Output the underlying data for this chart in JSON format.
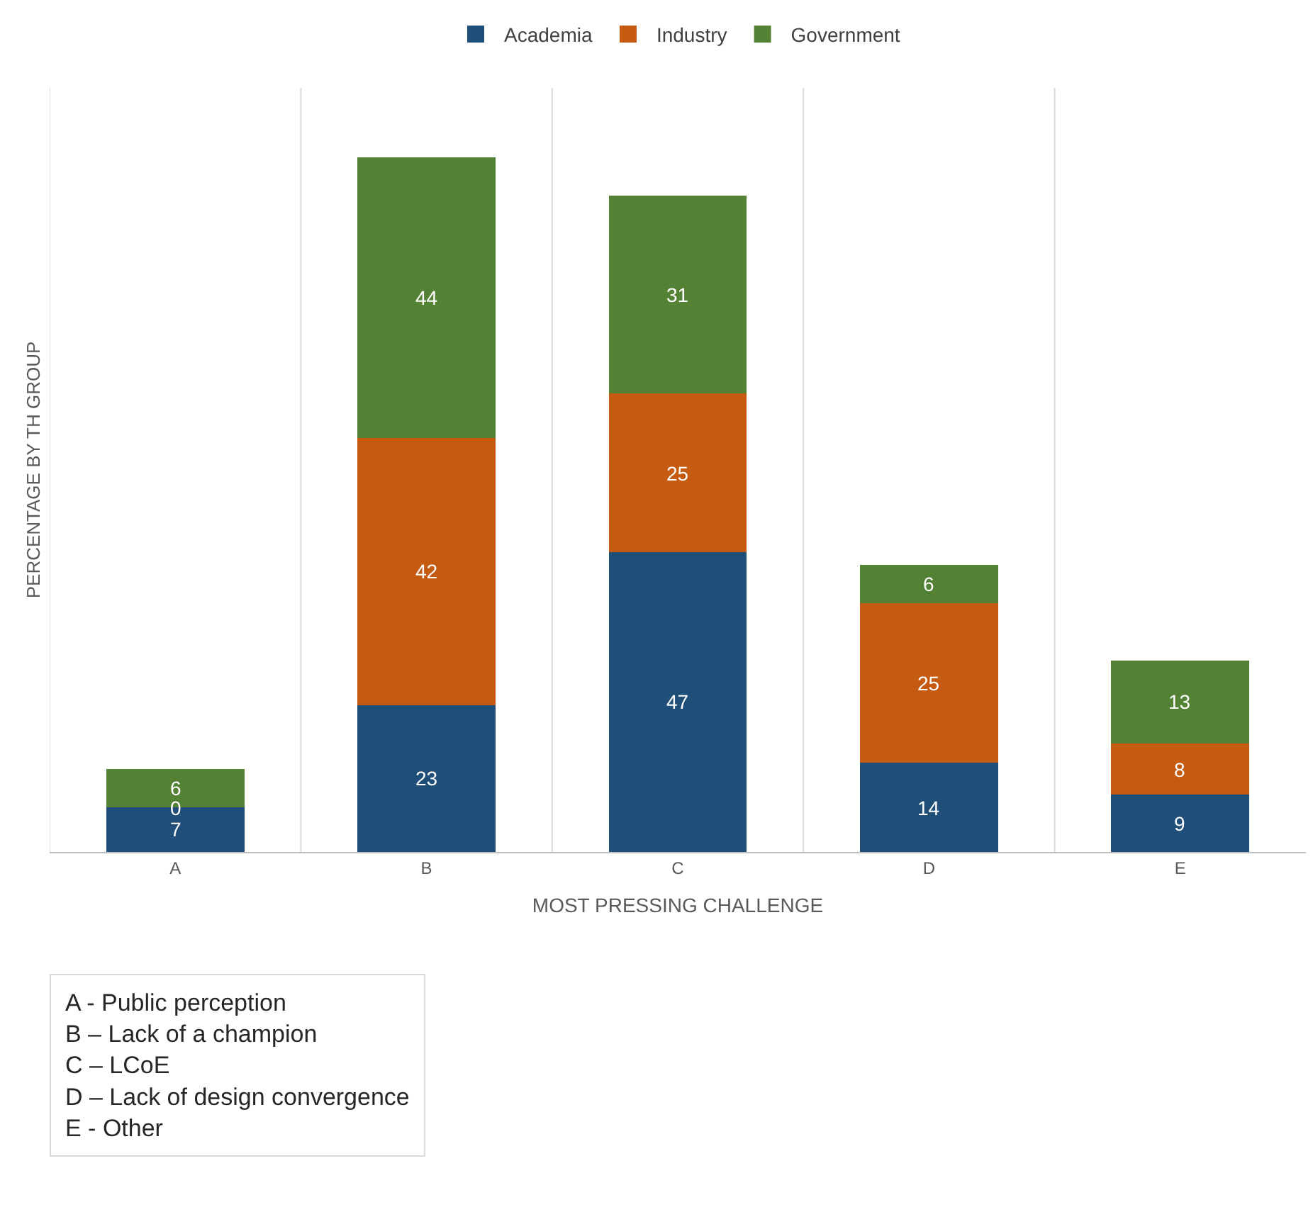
{
  "chart_data": {
    "type": "bar",
    "stacked": true,
    "data_labels": true,
    "grid": "x",
    "legend": "top",
    "xlabel": "MOST PRESSING CHALLENGE",
    "ylabel": "PERCENTAGE BY TH GROUP",
    "categories": [
      "A",
      "B",
      "C",
      "D",
      "E"
    ],
    "series": [
      {
        "name": "Academia",
        "color": "#1f4e79",
        "values": [
          7,
          23,
          47,
          14,
          9
        ]
      },
      {
        "name": "Industry",
        "color": "#c55a11",
        "values": [
          0,
          42,
          25,
          25,
          8
        ]
      },
      {
        "name": "Government",
        "color": "#548235",
        "values": [
          6,
          44,
          31,
          6,
          13
        ]
      }
    ],
    "annotations": [
      "A - Public perception",
      "B – Lack of a champion",
      "C – LCoE",
      "D – Lack of design convergence",
      "E - Other"
    ]
  }
}
